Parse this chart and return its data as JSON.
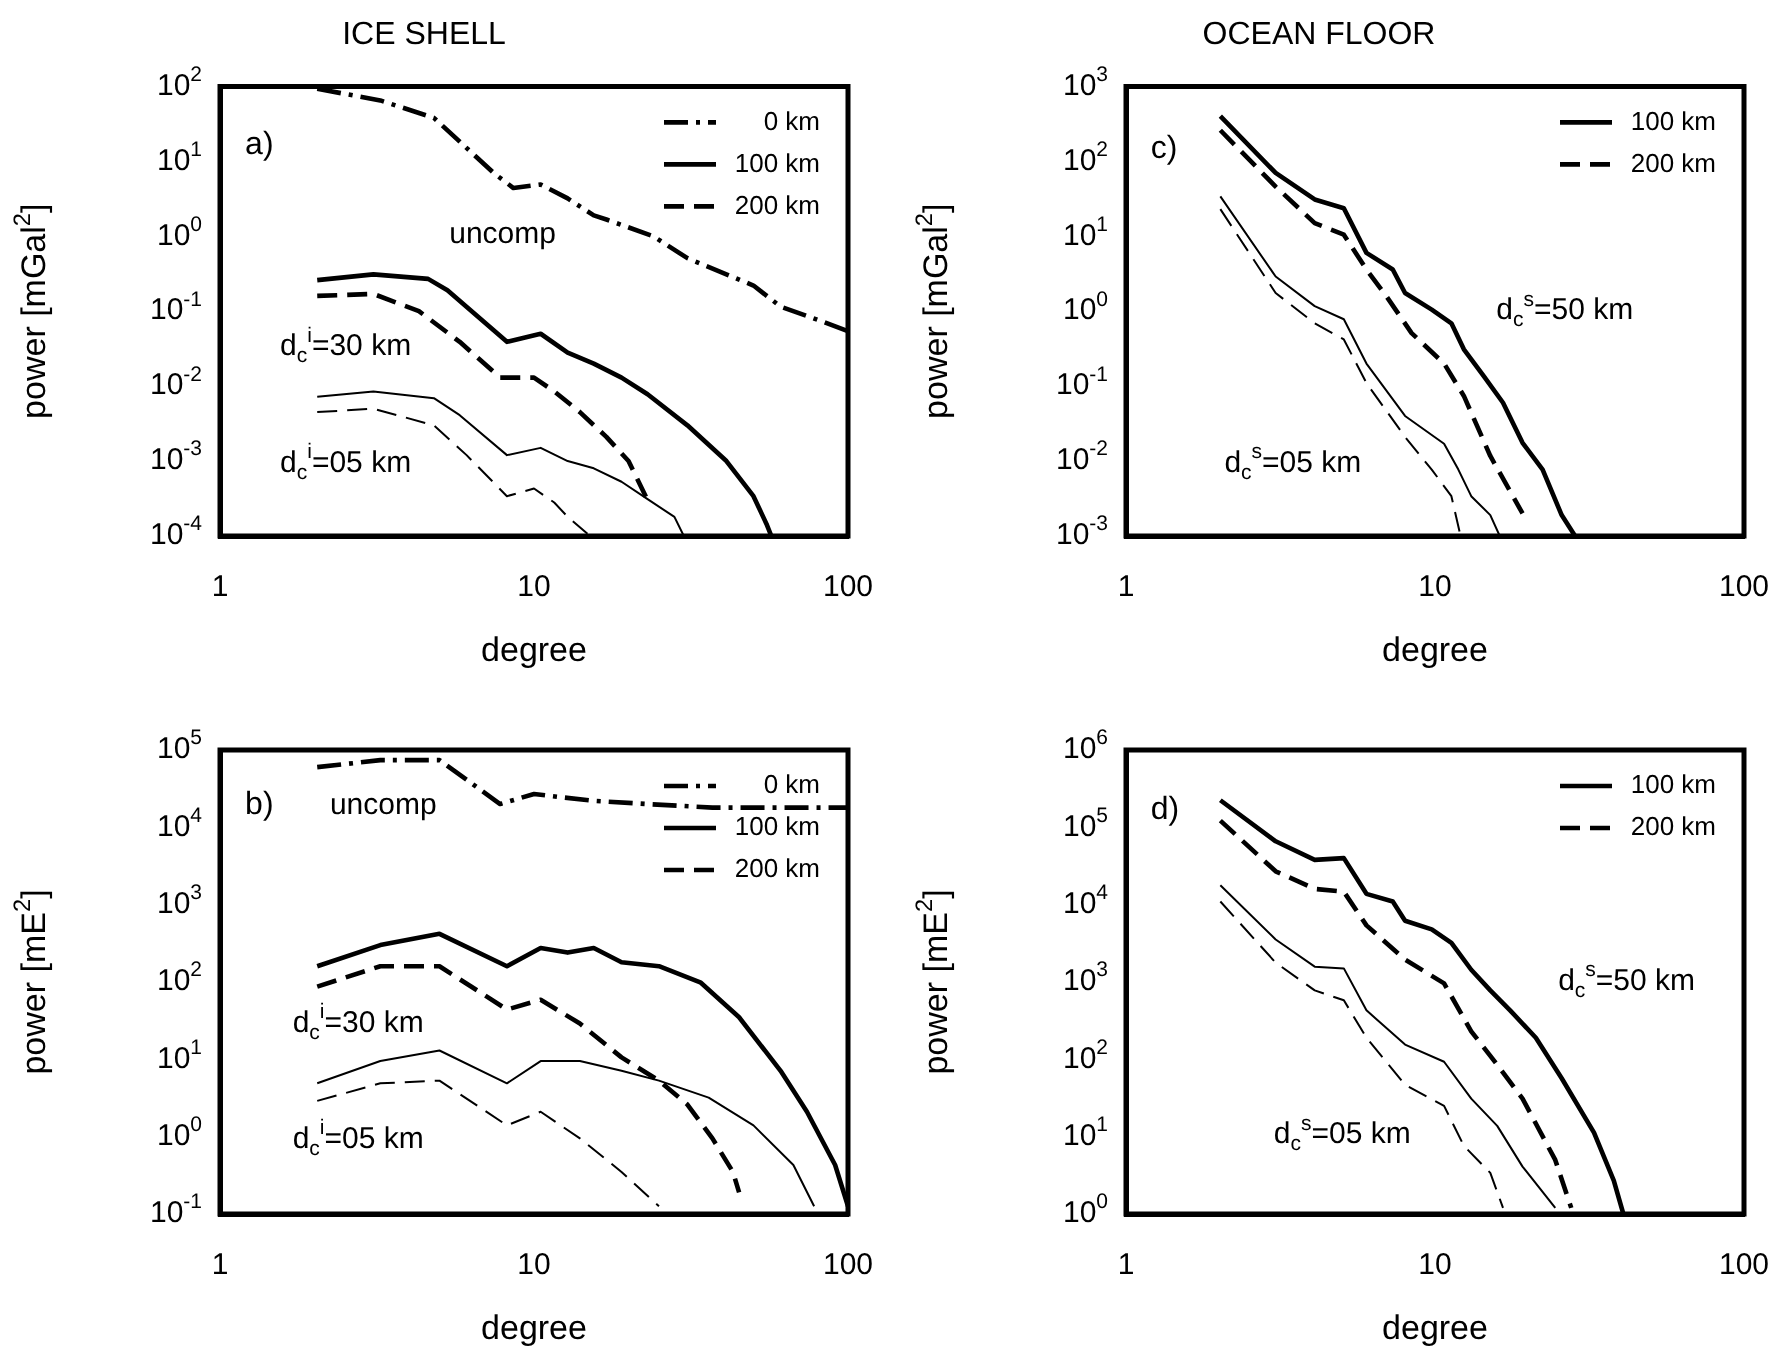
{
  "chart_data": [
    {
      "type": "line",
      "title": "ICE SHELL",
      "xlabel": "degree",
      "ylabel": "power [mGal$^{2}$]",
      "log": "xy",
      "xlim": [
        1,
        100
      ],
      "xticks": [
        1,
        10,
        100
      ],
      "ylim": [
        0.0001,
        100
      ],
      "yticks": [
        {
          "value": 0.0001,
          "label": "10$^{-4}$"
        },
        {
          "value": 0.001,
          "label": "10$^{-3}$"
        },
        {
          "value": 0.01,
          "label": "10$^{-2}$"
        },
        {
          "value": 0.1,
          "label": "10$^{-1}$"
        },
        {
          "value": 1,
          "label": "10$^{0}$"
        },
        {
          "value": 10,
          "label": "10$^{1}$"
        },
        {
          "value": 100,
          "label": "10$^{2}$"
        }
      ],
      "legend": "top right",
      "series": [
        {
          "name": "0 km",
          "color": "#000000",
          "line_style": "dashdot",
          "x": [
            2.04,
            3.24,
            4.8,
            7.5,
            8.6,
            10.5,
            12.8,
            15.5,
            17.1,
            24,
            30.8,
            50,
            61,
            82,
            100
          ],
          "values": [
            93,
            65,
            38,
            6.8,
            4.4,
            4.9,
            3.2,
            1.9,
            1.66,
            1,
            0.51,
            0.22,
            0.115,
            0.074,
            0.054
          ]
        },
        {
          "name": "100 km",
          "color": "#000000",
          "line_style": "solid",
          "x": [
            2.04,
            3.08,
            4.6,
            5.3,
            8.2,
            10.5,
            12.8,
            15.5,
            19,
            23,
            30.8,
            41,
            50,
            55,
            57
          ],
          "values": [
            0.26,
            0.31,
            0.27,
            0.19,
            0.039,
            0.05,
            0.028,
            0.02,
            0.013,
            0.0078,
            0.003,
            0.001,
            0.00034,
            0.000145,
            0.0001
          ]
        },
        {
          "name": "200 km",
          "color": "#000000",
          "line_style": "dashed",
          "x": [
            2.04,
            3.08,
            4.3,
            5.8,
            7.8,
            10,
            11.6,
            14,
            17,
            20,
            23
          ],
          "values": [
            0.16,
            0.17,
            0.1,
            0.039,
            0.013,
            0.013,
            0.0085,
            0.0045,
            0.0021,
            0.001,
            0.0003
          ]
        },
        {
          "color": "#000000",
          "line_style": "solid",
          "x": [
            2.04,
            3.08,
            4.8,
            5.8,
            8.2,
            10.5,
            12.8,
            15.5,
            19,
            23,
            28,
            30
          ],
          "values": [
            0.0072,
            0.0085,
            0.0069,
            0.0041,
            0.0012,
            0.0015,
            0.001,
            0.0008,
            0.00053,
            0.00031,
            0.00018,
            0.0001
          ]
        },
        {
          "color": "#000000",
          "line_style": "dashed",
          "x": [
            2.04,
            3.08,
            4.8,
            6.1,
            8.2,
            10,
            11.6,
            12.8,
            14.8
          ],
          "values": [
            0.0045,
            0.005,
            0.003,
            0.0012,
            0.00034,
            0.00043,
            0.00028,
            0.00018,
            0.000107
          ]
        }
      ],
      "annotations": [
        "a)",
        "uncomp",
        "d$_{c}$$^{i}$=30 km",
        "d$_{c}$$^{i}$=05 km"
      ]
    },
    {
      "type": "line",
      "xlabel": "degree",
      "ylabel": "power [mE$^{2}$]",
      "log": "xy",
      "xlim": [
        1,
        100
      ],
      "xticks": [
        1,
        10,
        100
      ],
      "ylim": [
        0.1,
        100000
      ],
      "yticks": [
        {
          "value": 0.1,
          "label": "10$^{-1}$"
        },
        {
          "value": 1,
          "label": "10$^{0}$"
        },
        {
          "value": 10,
          "label": "10$^{1}$"
        },
        {
          "value": 100,
          "label": "10$^{2}$"
        },
        {
          "value": 1000,
          "label": "10$^{3}$"
        },
        {
          "value": 10000,
          "label": "10$^{4}$"
        },
        {
          "value": 100000,
          "label": "10$^{5}$"
        }
      ],
      "legend": "top right",
      "series": [
        {
          "name": "0 km",
          "color": "#000000",
          "line_style": "dashdot",
          "x": [
            2.04,
            3.24,
            5,
            7.8,
            10,
            12.2,
            15.5,
            23,
            37,
            61,
            100
          ],
          "values": [
            60000,
            74000,
            74000,
            20000,
            27000,
            24500,
            22000,
            20000,
            18000,
            18000,
            18000
          ]
        },
        {
          "name": "100 km",
          "color": "#000000",
          "line_style": "solid",
          "x": [
            2.04,
            3.24,
            5,
            8.2,
            10.5,
            12.8,
            15.5,
            19,
            25,
            34,
            45,
            61,
            74,
            91,
            100
          ],
          "values": [
            160,
            300,
            420,
            160,
            275,
            240,
            275,
            180,
            160,
            98,
            35,
            7.1,
            2.1,
            0.43,
            0.126
          ]
        },
        {
          "name": "200 km",
          "color": "#000000",
          "line_style": "dashed",
          "x": [
            2.04,
            3.24,
            5,
            8.2,
            10.5,
            14,
            19,
            25,
            30.8,
            37,
            43,
            45
          ],
          "values": [
            87,
            160,
            160,
            44,
            59,
            29,
            10.6,
            5.3,
            2.6,
            0.95,
            0.35,
            0.19
          ]
        },
        {
          "color": "#000000",
          "line_style": "solid",
          "x": [
            2.04,
            3.24,
            5,
            8.2,
            10.5,
            14,
            19,
            25,
            36,
            50,
            67,
            78
          ],
          "values": [
            4.9,
            9.5,
            13,
            4.9,
            9.5,
            9.5,
            7.1,
            5.3,
            3.2,
            1.4,
            0.43,
            0.126
          ]
        },
        {
          "color": "#000000",
          "line_style": "dashed",
          "x": [
            2.04,
            3.24,
            5,
            8.2,
            10.5,
            14,
            19,
            25
          ],
          "values": [
            2.9,
            4.9,
            5.3,
            1.4,
            2.1,
            0.95,
            0.35,
            0.126
          ]
        }
      ],
      "annotations": [
        "b)",
        "uncomp",
        "d$_{c}$$^{i}$=30 km",
        "d$_{c}$$^{i}$=05 km"
      ]
    },
    {
      "type": "line",
      "title": "OCEAN FLOOR",
      "xlabel": "degree",
      "ylabel": "power [mGal$^{2}$]",
      "log": "xy",
      "xlim": [
        1,
        100
      ],
      "xticks": [
        1,
        10,
        100
      ],
      "ylim": [
        0.001,
        1000
      ],
      "yticks": [
        {
          "value": 0.001,
          "label": "10$^{-3}$"
        },
        {
          "value": 0.01,
          "label": "10$^{-2}$"
        },
        {
          "value": 0.1,
          "label": "10$^{-1}$"
        },
        {
          "value": 1,
          "label": "10$^{0}$"
        },
        {
          "value": 10,
          "label": "10$^{1}$"
        },
        {
          "value": 100,
          "label": "10$^{2}$"
        },
        {
          "value": 1000,
          "label": "10$^{3}$"
        }
      ],
      "legend": "top right",
      "series": [
        {
          "name": "100 km",
          "color": "#000000",
          "line_style": "solid",
          "x": [
            2.02,
            3.05,
            4.08,
            5.07,
            6,
            7.3,
            8,
            9.76,
            11.3,
            12.4,
            14.4,
            16.6,
            19.2,
            22.3,
            25.7,
            28.4
          ],
          "values": [
            400,
            70,
            31,
            23.7,
            6,
            3.6,
            1.75,
            1.05,
            0.69,
            0.31,
            0.135,
            0.06,
            0.0175,
            0.0077,
            0.0019,
            0.001
          ]
        },
        {
          "name": "200 km",
          "color": "#000000",
          "line_style": "dashed",
          "x": [
            2.02,
            3.05,
            4.08,
            5.07,
            6,
            6.95,
            8.4,
            10.7,
            12.4,
            15.1,
            19.2
          ],
          "values": [
            260,
            46,
            15,
            10.5,
            3.6,
            1.6,
            0.51,
            0.2,
            0.074,
            0.0117,
            0.002
          ]
        },
        {
          "color": "#000000",
          "line_style": "solid",
          "x": [
            2.02,
            3.05,
            4.08,
            5.07,
            6,
            8,
            10.7,
            11.9,
            13.1,
            15.1,
            16.2
          ],
          "values": [
            34,
            2.9,
            1.17,
            0.78,
            0.2,
            0.04,
            0.017,
            0.0077,
            0.0034,
            0.0019,
            0.001
          ]
        },
        {
          "color": "#000000",
          "line_style": "dashed",
          "x": [
            2.02,
            3.05,
            4.08,
            5.07,
            6,
            8,
            9.76,
            11.3,
            12.1
          ],
          "values": [
            23,
            1.75,
            0.69,
            0.42,
            0.11,
            0.021,
            0.0077,
            0.0034,
            0.001
          ]
        }
      ],
      "annotations": [
        "c)",
        "d$_{c}$$^{s}$=50 km",
        "d$_{c}$$^{s}$=05 km"
      ]
    },
    {
      "type": "line",
      "xlabel": "degree",
      "ylabel": "power [mE$^{2}$]",
      "log": "xy",
      "xlim": [
        1,
        100
      ],
      "xticks": [
        1,
        10,
        100
      ],
      "ylim": [
        1,
        1000000
      ],
      "yticks": [
        {
          "value": 1,
          "label": "10$^{0}$"
        },
        {
          "value": 10,
          "label": "10$^{1}$"
        },
        {
          "value": 100,
          "label": "10$^{2}$"
        },
        {
          "value": 1000,
          "label": "10$^{3}$"
        },
        {
          "value": 10000,
          "label": "10$^{4}$"
        },
        {
          "value": 100000,
          "label": "10$^{5}$"
        },
        {
          "value": 1000000,
          "label": "10$^{6}$"
        }
      ],
      "legend": "top right",
      "series": [
        {
          "name": "100 km",
          "color": "#000000",
          "line_style": "solid",
          "x": [
            2.02,
            3.05,
            4.08,
            5.07,
            6,
            7.3,
            8,
            9.76,
            11.3,
            13.1,
            15.1,
            17.5,
            21.2,
            25.7,
            32.7,
            37.9,
            40.7
          ],
          "values": [
            224000,
            66000,
            38000,
            40000,
            13800,
            11000,
            6200,
            4800,
            3200,
            1440,
            780,
            430,
            190,
            57,
            11.3,
            2.7,
            1
          ]
        },
        {
          "name": "200 km",
          "color": "#000000",
          "line_style": "dashed",
          "x": [
            2.02,
            3.05,
            4.08,
            5.07,
            6,
            8,
            10.7,
            13.1,
            15.9,
            19.2,
            24.5,
            27.6
          ],
          "values": [
            122000,
            27000,
            16000,
            14700,
            5400,
            1950,
            960,
            230,
            85,
            31,
            5,
            1.2
          ]
        },
        {
          "color": "#000000",
          "line_style": "solid",
          "x": [
            2.02,
            3.05,
            4.08,
            5.07,
            6,
            8,
            10.7,
            13.1,
            15.9,
            19.2,
            24.5
          ],
          "values": [
            17800,
            3550,
            1580,
            1500,
            430,
            155,
            93,
            31,
            13.8,
            4.1,
            1.2
          ]
        },
        {
          "color": "#000000",
          "line_style": "dashed",
          "x": [
            2.02,
            3.05,
            4.08,
            5.07,
            6,
            8,
            10.7,
            12.4,
            15.1,
            16.6
          ],
          "values": [
            11000,
            1780,
            780,
            580,
            190,
            47,
            25,
            7.6,
            3.4,
            1.2
          ]
        }
      ],
      "annotations": [
        "d)",
        "d$_{c}$$^{s}$=50 km",
        "d$_{c}$$^{s}$=05 km"
      ]
    }
  ]
}
